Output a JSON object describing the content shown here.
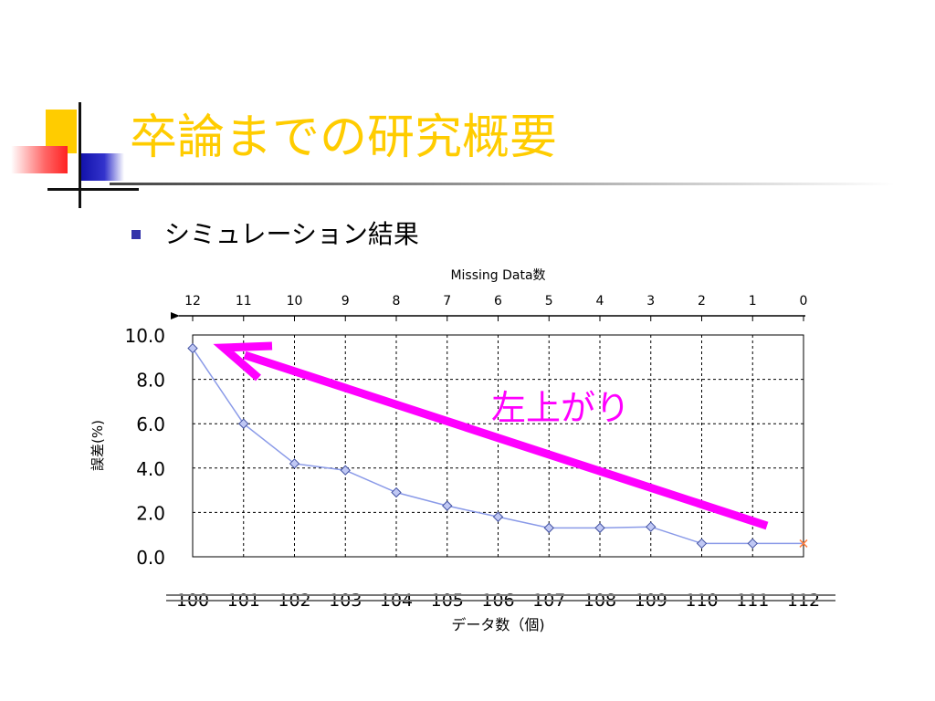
{
  "slide": {
    "title": "卒論までの研究概要",
    "bullet": "シミュレーション結果"
  },
  "colors": {
    "title": "#ffcc00",
    "bullet_marker": "#3333aa",
    "series": "#8a9ae8",
    "marker_fill": "#c0c8f4",
    "marker_stroke": "#4050a0",
    "arrow": "#ff00ff",
    "end_marker": "#ff8040"
  },
  "chart_data": {
    "type": "line",
    "title": "",
    "xlabel": "データ数（個)",
    "ylabel": "誤差(%)",
    "top_axis_label": "Missing Data数",
    "annotation": "左上がり",
    "categories": [
      "100",
      "101",
      "102",
      "103",
      "104",
      "105",
      "106",
      "107",
      "108",
      "109",
      "110",
      "111",
      "112"
    ],
    "top_categories": [
      "12",
      "11",
      "10",
      "9",
      "8",
      "7",
      "6",
      "5",
      "4",
      "3",
      "2",
      "1",
      "0"
    ],
    "y_ticks": [
      "10.0",
      "8.0",
      "6.0",
      "4.0",
      "2.0",
      "0.0"
    ],
    "ylim": [
      0,
      10
    ],
    "grid": true,
    "series": [
      {
        "values": [
          9.4,
          6.0,
          4.2,
          3.9,
          2.9,
          2.3,
          1.8,
          1.3,
          1.3,
          1.35,
          0.6,
          0.6,
          0.6
        ]
      }
    ],
    "end_marker": "x"
  }
}
